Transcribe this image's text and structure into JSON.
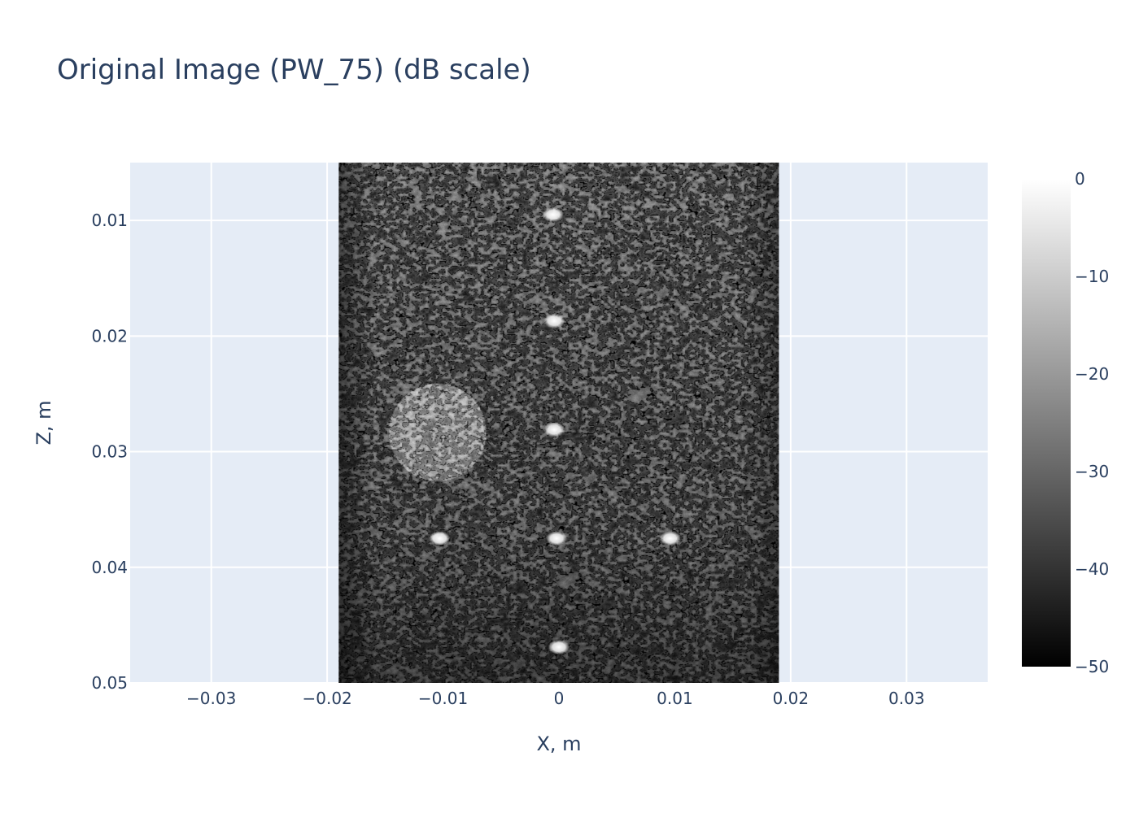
{
  "chart_data": {
    "type": "heatmap",
    "title": "Original Image (PW_75) (dB scale)",
    "xlabel": "X, m",
    "ylabel": "Z, m",
    "xlim": [
      -0.037,
      0.037
    ],
    "ylim": [
      0.005,
      0.05
    ],
    "y_reversed": true,
    "x_ticks": [
      -0.03,
      -0.02,
      -0.01,
      0,
      0.01,
      0.02,
      0.03
    ],
    "x_tick_labels": [
      "−0.03",
      "−0.02",
      "−0.01",
      "0",
      "0.01",
      "0.02",
      "0.03"
    ],
    "y_ticks": [
      0.01,
      0.02,
      0.03,
      0.04,
      0.05
    ],
    "y_tick_labels": [
      "0.01",
      "0.02",
      "0.03",
      "0.04",
      "0.05"
    ],
    "image_x_range": [
      -0.019,
      0.019
    ],
    "image_z_range": [
      0.005,
      0.05
    ],
    "colorscale": "Greys",
    "colorbar": {
      "range": [
        -50,
        0
      ],
      "ticks": [
        0,
        -10,
        -20,
        -30,
        -40,
        -50
      ],
      "tick_labels": [
        "0",
        "−10",
        "−20",
        "−30",
        "−40",
        "−50"
      ]
    },
    "point_targets": [
      {
        "x": -0.0005,
        "z": 0.0095
      },
      {
        "x": -0.0004,
        "z": 0.0187
      },
      {
        "x": -0.0004,
        "z": 0.0281
      },
      {
        "x": -0.0103,
        "z": 0.0375
      },
      {
        "x": -0.0002,
        "z": 0.0375
      },
      {
        "x": 0.0096,
        "z": 0.0375
      },
      {
        "x": 0,
        "z": 0.0469
      }
    ],
    "cyst": {
      "x": -0.0105,
      "z": 0.0283,
      "radius": 0.0042,
      "level_db": -18
    },
    "background_level_db": -32,
    "grid": true,
    "plot_bgcolor": "#e5ecf6",
    "gridcolor": "#ffffff"
  }
}
